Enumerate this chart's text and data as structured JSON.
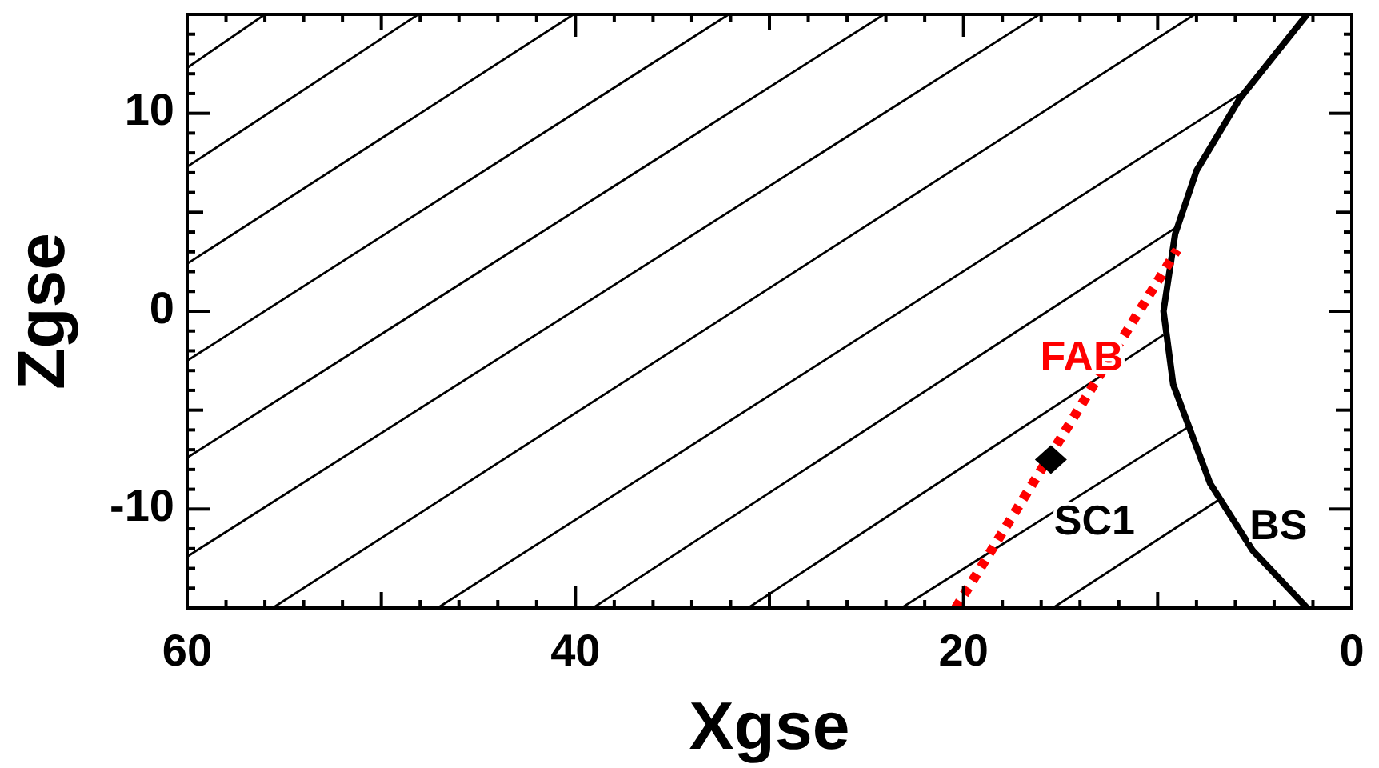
{
  "chart_data": {
    "type": "line",
    "xlabel": "Xgse",
    "ylabel": "Zgse",
    "xlim": [
      60,
      0
    ],
    "ylim": [
      -15,
      15
    ],
    "xticks": [
      60,
      {
        "value": 58,
        "label": null
      },
      {
        "value": 56,
        "label": null
      },
      {
        "value": 54,
        "label": null
      },
      {
        "value": 52,
        "label": null
      },
      {
        "value": 50,
        "label": null
      },
      {
        "value": 48,
        "label": null
      },
      {
        "value": 46,
        "label": null
      },
      {
        "value": 44,
        "label": null
      },
      {
        "value": 42,
        "label": null
      },
      40,
      {
        "value": 38,
        "label": null
      },
      {
        "value": 36,
        "label": null
      },
      {
        "value": 34,
        "label": null
      },
      {
        "value": 32,
        "label": null
      },
      {
        "value": 30,
        "label": null
      },
      {
        "value": 28,
        "label": null
      },
      {
        "value": 26,
        "label": null
      },
      {
        "value": 24,
        "label": null
      },
      {
        "value": 22,
        "label": null
      },
      20,
      {
        "value": 18,
        "label": null
      },
      {
        "value": 16,
        "label": null
      },
      {
        "value": 14,
        "label": null
      },
      {
        "value": 12,
        "label": null
      },
      {
        "value": 10,
        "label": null
      },
      {
        "value": 8,
        "label": null
      },
      {
        "value": 6,
        "label": null
      },
      {
        "value": 4,
        "label": null
      },
      {
        "value": 2,
        "label": null
      },
      0
    ],
    "yticks": [
      {
        "value": -14,
        "label": null
      },
      {
        "value": -13,
        "label": null
      },
      {
        "value": -12,
        "label": null
      },
      {
        "value": -11,
        "label": null
      },
      -10,
      {
        "value": -9,
        "label": null
      },
      {
        "value": -8,
        "label": null
      },
      {
        "value": -7,
        "label": null
      },
      {
        "value": -6,
        "label": null
      },
      {
        "value": -5,
        "label": null
      },
      {
        "value": -4,
        "label": null
      },
      {
        "value": -3,
        "label": null
      },
      {
        "value": -2,
        "label": null
      },
      {
        "value": -1,
        "label": null
      },
      0,
      {
        "value": 1,
        "label": null
      },
      {
        "value": 2,
        "label": null
      },
      {
        "value": 3,
        "label": null
      },
      {
        "value": 4,
        "label": null
      },
      {
        "value": 5,
        "label": null
      },
      {
        "value": 6,
        "label": null
      },
      {
        "value": 7,
        "label": null
      },
      {
        "value": 8,
        "label": null
      },
      {
        "value": 9,
        "label": null
      },
      10,
      {
        "value": 11,
        "label": null
      },
      {
        "value": 12,
        "label": null
      },
      {
        "value": 13,
        "label": null
      },
      {
        "value": 14,
        "label": null
      }
    ],
    "series": [
      {
        "color": "#000000",
        "x": [
          60,
          56.0
        ],
        "values": [
          12.3,
          15
        ]
      },
      {
        "color": "#000000",
        "x": [
          60,
          48.1
        ],
        "values": [
          7.3,
          15
        ]
      },
      {
        "color": "#000000",
        "x": [
          60,
          40.1
        ],
        "values": [
          2.4,
          15
        ]
      },
      {
        "color": "#000000",
        "x": [
          60,
          32.1
        ],
        "values": [
          -2.5,
          15
        ]
      },
      {
        "color": "#000000",
        "x": [
          60,
          24.1
        ],
        "values": [
          -7.4,
          15
        ]
      },
      {
        "color": "#000000",
        "x": [
          60,
          16.1
        ],
        "values": [
          -12.4,
          15
        ]
      },
      {
        "color": "#000000",
        "x": [
          55.6,
          8.1
        ],
        "values": [
          -15,
          15
        ]
      },
      {
        "color": "#000000",
        "x": [
          47.1,
          5.7
        ],
        "values": [
          -15,
          11.0
        ]
      },
      {
        "color": "#000000",
        "x": [
          39.1,
          9.1
        ],
        "values": [
          -15,
          4.2
        ]
      },
      {
        "color": "#000000",
        "x": [
          31.1,
          9.7
        ],
        "values": [
          -15,
          -1.2
        ]
      },
      {
        "color": "#000000",
        "x": [
          23.2,
          8.5
        ],
        "values": [
          -15,
          -5.9
        ]
      },
      {
        "color": "#000000",
        "x": [
          15.4,
          6.8
        ],
        "values": [
          -15,
          -9.5
        ]
      },
      {
        "name": "BS",
        "color": "#000000",
        "x": [
          2.3,
          5.8,
          8.0,
          9.1,
          9.7,
          9.2,
          7.3,
          5.1,
          2.3
        ],
        "values": [
          15,
          10.7,
          7.1,
          3.9,
          0,
          -3.7,
          -8.7,
          -12.1,
          -15
        ]
      },
      {
        "name": "FAB",
        "color": "#ff0000",
        "line_style": "dotted",
        "x": [
          20.4,
          9.0
        ],
        "values": [
          -15,
          3.1
        ]
      },
      {
        "name": "SC1",
        "type": "scatter",
        "color": "#000000",
        "marker": "diamond",
        "x": [
          15.5
        ],
        "values": [
          -7.5
        ]
      }
    ],
    "grid": false
  }
}
